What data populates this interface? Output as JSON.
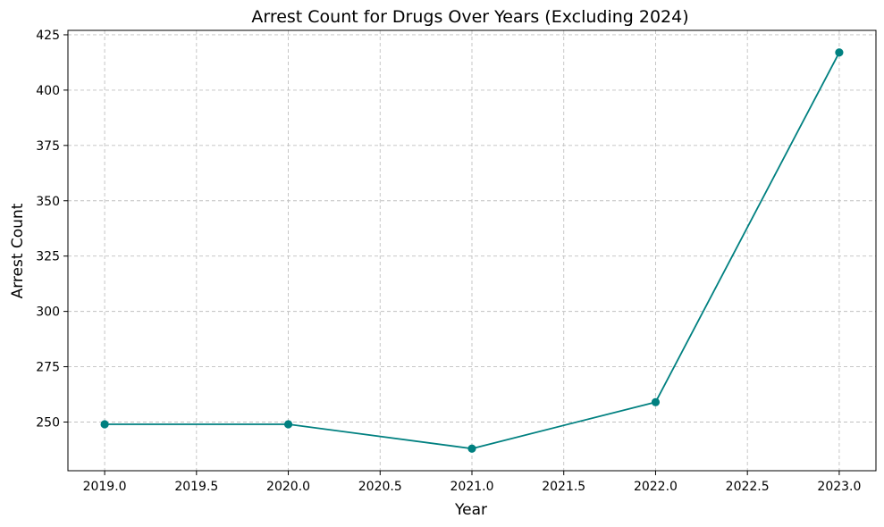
{
  "chart_data": {
    "type": "line",
    "title": "Arrest Count for Drugs Over Years (Excluding 2024)",
    "xlabel": "Year",
    "ylabel": "Arrest Count",
    "x": [
      2019,
      2020,
      2021,
      2022,
      2023
    ],
    "series": [
      {
        "values": [
          249,
          249,
          238,
          259,
          417
        ]
      }
    ],
    "xlim": [
      2018.8,
      2023.2
    ],
    "ylim": [
      228,
      427
    ],
    "xticks": [
      "2019.0",
      "2019.5",
      "2020.0",
      "2020.5",
      "2021.0",
      "2021.5",
      "2022.0",
      "2022.5",
      "2023.0"
    ],
    "yticks": [
      "250",
      "275",
      "300",
      "325",
      "350",
      "375",
      "400",
      "425"
    ],
    "grid": true,
    "grid_style": "dashed",
    "colors": {
      "line": "#008080",
      "marker": "#008080",
      "grid": "#c0c0c0",
      "axis": "#000000"
    }
  }
}
